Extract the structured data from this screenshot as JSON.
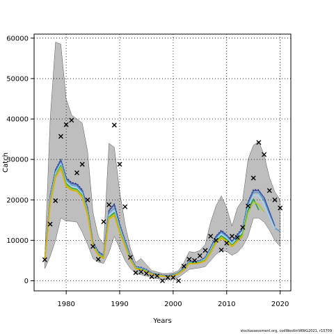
{
  "chart_data": {
    "type": "line",
    "xlabel": "Years",
    "ylabel": "Catch",
    "xlim": [
      1974,
      2022
    ],
    "ylim": [
      -2500,
      61000
    ],
    "xticks": [
      1980,
      1990,
      2000,
      2010,
      2020
    ],
    "yticks": [
      0,
      10000,
      20000,
      30000,
      40000,
      50000,
      60000
    ],
    "grid": true,
    "grid_style": "dotted",
    "colors": {
      "band": "#bebebe",
      "band_edge": "#555555",
      "observed": "#000000",
      "series": [
        "#2c2c7a",
        "#3a4fa0",
        "#5a9bd5",
        "#a6d4f2",
        "#1f9e46",
        "#a8c82a",
        "#e0b000"
      ]
    },
    "observed_catch": {
      "marker": "x",
      "x": [
        1976,
        1977,
        1978,
        1979,
        1980,
        1981,
        1982,
        1983,
        1984,
        1985,
        1986,
        1987,
        1988,
        1989,
        1990,
        1991,
        1992,
        1993,
        1994,
        1995,
        1996,
        1997,
        1998,
        1999,
        2000,
        2001,
        2002,
        2003,
        2004,
        2005,
        2006,
        2007,
        2008,
        2009,
        2010,
        2011,
        2012,
        2013,
        2014,
        2015,
        2016,
        2017,
        2018,
        2019,
        2020
      ],
      "y": [
        5200,
        14000,
        19800,
        35700,
        38600,
        39700,
        26700,
        28800,
        20000,
        8500,
        5300,
        14600,
        18800,
        38500,
        28800,
        18300,
        5800,
        2000,
        2200,
        1800,
        1000,
        1200,
        0,
        800,
        800,
        0,
        3600,
        5300,
        5000,
        6200,
        7500,
        11000,
        10000,
        7600,
        9300,
        11000,
        10700,
        13200,
        18500,
        25400,
        34200,
        31200,
        22300,
        20000,
        18000
      ]
    },
    "uncertainty_band": {
      "x": [
        1976,
        1977,
        1978,
        1979,
        1980,
        1981,
        1982,
        1983,
        1984,
        1985,
        1986,
        1987,
        1988,
        1989,
        1990,
        1991,
        1992,
        1993,
        1994,
        1995,
        1996,
        1997,
        1998,
        1999,
        2000,
        2001,
        2002,
        2003,
        2004,
        2005,
        2006,
        2007,
        2008,
        2009,
        2010,
        2011,
        2012,
        2013,
        2014,
        2015,
        2016,
        2017,
        2018,
        2019,
        2020
      ],
      "upper": [
        6000,
        40000,
        59000,
        58500,
        45000,
        41000,
        40000,
        39000,
        32000,
        17000,
        11000,
        9000,
        34000,
        33000,
        22000,
        14000,
        8000,
        4500,
        5500,
        4000,
        2500,
        2200,
        1800,
        1800,
        2000,
        2500,
        4500,
        7200,
        7000,
        7500,
        9000,
        14500,
        18500,
        21000,
        18000,
        13500,
        18000,
        20000,
        30000,
        33500,
        34500,
        31000,
        25500,
        22000,
        20000
      ],
      "lower": [
        3000,
        6000,
        10000,
        15500,
        14800,
        14700,
        14500,
        12000,
        9000,
        5500,
        4600,
        4300,
        7000,
        11000,
        8000,
        5000,
        3000,
        1800,
        1500,
        1200,
        700,
        500,
        300,
        300,
        500,
        800,
        1800,
        2800,
        3000,
        3200,
        3500,
        5000,
        6500,
        7500,
        7200,
        6300,
        7000,
        8500,
        11000,
        15500,
        15500,
        14500,
        12500,
        10000,
        8500
      ]
    },
    "series": [
      {
        "x": [
          1976,
          1977,
          1978,
          1979,
          1980,
          1981,
          1982,
          1983,
          1984,
          1985,
          1986,
          1987,
          1988,
          1989,
          1990,
          1991,
          1992,
          1993,
          1994,
          1995,
          1996,
          1997,
          1998,
          1999,
          2000,
          2001,
          2002,
          2003,
          2004,
          2005,
          2006,
          2007,
          2008,
          2009,
          2010,
          2011,
          2012,
          2013,
          2014,
          2015,
          2016
        ],
        "values": [
          5500,
          21000,
          27500,
          30000,
          25500,
          24300,
          24000,
          22500,
          18000,
          9500,
          7200,
          6300,
          17500,
          19000,
          14000,
          10000,
          6000,
          3500,
          3300,
          2800,
          1900,
          1600,
          1400,
          1300,
          1500,
          2000,
          3200,
          4800,
          4800,
          5000,
          5800,
          8200,
          11000,
          12500,
          11300,
          9800,
          11500,
          13000,
          19500,
          22500,
          22500
        ],
        "style": "dotted"
      },
      {
        "x": [
          1976,
          1977,
          1978,
          1979,
          1980,
          1981,
          1982,
          1983,
          1984,
          1985,
          1986,
          1987,
          1988,
          1989,
          1990,
          1991,
          1992,
          1993,
          1994,
          1995,
          1996,
          1997,
          1998,
          1999,
          2000,
          2001,
          2002,
          2003,
          2004,
          2005,
          2006,
          2007,
          2008,
          2009,
          2010,
          2011,
          2012,
          2013,
          2014,
          2015,
          2016,
          2017,
          2018,
          2019
        ],
        "values": [
          5400,
          20800,
          27300,
          29800,
          25300,
          24100,
          23800,
          22300,
          17800,
          9400,
          7100,
          6200,
          17300,
          18800,
          13800,
          9900,
          5900,
          3400,
          3200,
          2700,
          1850,
          1550,
          1350,
          1250,
          1450,
          1950,
          3100,
          4700,
          4700,
          4900,
          5700,
          8100,
          10900,
          12300,
          11200,
          9700,
          11300,
          12800,
          19300,
          22300,
          22300,
          20500,
          17000,
          13500
        ]
      },
      {
        "x": [
          1976,
          1977,
          1978,
          1979,
          1980,
          1981,
          1982,
          1983,
          1984,
          1985,
          1986,
          1987,
          1988,
          1989,
          1990,
          1991,
          1992,
          1993,
          1994,
          1995,
          1996,
          1997,
          1998,
          1999,
          2000,
          2001,
          2002,
          2003,
          2004,
          2005,
          2006,
          2007,
          2008,
          2009,
          2010,
          2011,
          2012,
          2013,
          2014,
          2015,
          2016,
          2017,
          2018,
          2019,
          2020
        ],
        "values": [
          5300,
          20400,
          26900,
          29300,
          24900,
          23700,
          23400,
          21900,
          17400,
          9200,
          6900,
          6000,
          16700,
          18000,
          13300,
          9500,
          5700,
          3300,
          3100,
          2600,
          1800,
          1500,
          1300,
          1200,
          1400,
          1900,
          3000,
          4600,
          4600,
          4800,
          5500,
          7800,
          10500,
          11900,
          10900,
          9400,
          11000,
          12500,
          18800,
          21800,
          21800,
          19800,
          16300,
          13000,
          12200
        ]
      },
      {
        "x": [
          1976,
          1977,
          1978,
          1979,
          1980,
          1981,
          1982,
          1983,
          1984,
          1985,
          1986,
          1987,
          1988,
          1989,
          1990,
          1991,
          1992,
          1993,
          1994,
          1995,
          1996,
          1997,
          1998,
          1999,
          2000,
          2001,
          2002,
          2003,
          2004,
          2005,
          2006,
          2007,
          2008,
          2009,
          2010,
          2011,
          2012,
          2013,
          2014,
          2015,
          2016,
          2017,
          2018,
          2019
        ],
        "values": [
          5200,
          20000,
          26500,
          28900,
          24500,
          23300,
          23000,
          21500,
          17000,
          9000,
          6700,
          5800,
          16200,
          17400,
          12900,
          9200,
          5500,
          3200,
          3000,
          2500,
          1750,
          1450,
          1250,
          1150,
          1350,
          1850,
          2900,
          4500,
          4500,
          4700,
          5400,
          7600,
          10200,
          11600,
          10600,
          9200,
          10700,
          12200,
          18300,
          21200,
          21000,
          19000,
          15800,
          12800
        ]
      },
      {
        "x": [
          1976,
          1977,
          1978,
          1979,
          1980,
          1981,
          1982,
          1983,
          1984,
          1985,
          1986,
          1987,
          1988,
          1989,
          1990,
          1991,
          1992,
          1993,
          1994,
          1995,
          1996,
          1997,
          1998,
          1999,
          2000,
          2001,
          2002,
          2003,
          2004,
          2005,
          2006,
          2007,
          2008,
          2009,
          2010,
          2011,
          2012,
          2013,
          2014,
          2015,
          2016
        ],
        "values": [
          5100,
          19500,
          26000,
          28500,
          24000,
          22900,
          22600,
          21100,
          16700,
          8800,
          6600,
          5700,
          15700,
          16800,
          12400,
          8900,
          5300,
          3100,
          2900,
          2400,
          1700,
          1400,
          1200,
          1100,
          1300,
          1800,
          2800,
          4400,
          4400,
          4600,
          5200,
          7300,
          9800,
          11100,
          10200,
          8800,
          10200,
          11700,
          17500,
          20200,
          17500
        ]
      },
      {
        "x": [
          1976,
          1977,
          1978,
          1979,
          1980,
          1981,
          1982,
          1983,
          1984,
          1985,
          1986,
          1987,
          1988,
          1989,
          1990,
          1991,
          1992,
          1993,
          1994,
          1995,
          1996,
          1997,
          1998,
          1999,
          2000,
          2001,
          2002,
          2003,
          2004,
          2005,
          2006,
          2007,
          2008,
          2009,
          2010,
          2011,
          2012,
          2013,
          2014,
          2015,
          2016,
          2017
        ],
        "values": [
          5000,
          19300,
          25800,
          28200,
          23700,
          22700,
          22400,
          20900,
          16500,
          8700,
          6500,
          5600,
          15500,
          16500,
          12200,
          8700,
          5200,
          3000,
          2800,
          2300,
          1650,
          1350,
          1150,
          1050,
          1250,
          1750,
          2700,
          4300,
          4300,
          4500,
          5100,
          7100,
          9500,
          10800,
          9900,
          8600,
          9900,
          11300,
          16800,
          19500,
          18800,
          17000
        ]
      },
      {
        "x": [
          1976,
          1977,
          1978,
          1979,
          1980,
          1981,
          1982,
          1983,
          1984,
          1985,
          1986,
          1987,
          1988,
          1989,
          1990,
          1991,
          1992,
          1993,
          1994,
          1995,
          1996,
          1997,
          1998,
          1999,
          2000,
          2001,
          2002,
          2003,
          2004,
          2005,
          2006,
          2007,
          2008,
          2009,
          2010,
          2011,
          2012,
          2013
        ],
        "values": [
          4900,
          19000,
          25500,
          27800,
          23300,
          22400,
          22100,
          20600,
          16200,
          8500,
          6300,
          5500,
          15200,
          16100,
          11900,
          8500,
          5100,
          2900,
          2700,
          2200,
          1600,
          1300,
          1100,
          1000,
          1200,
          1700,
          2600,
          4200,
          4200,
          4400,
          4900,
          6900,
          9300,
          10500,
          9700,
          8400,
          9700,
          11000
        ]
      }
    ]
  },
  "footer": "stockassessment.org, codWestIntWWG2021, r15709"
}
